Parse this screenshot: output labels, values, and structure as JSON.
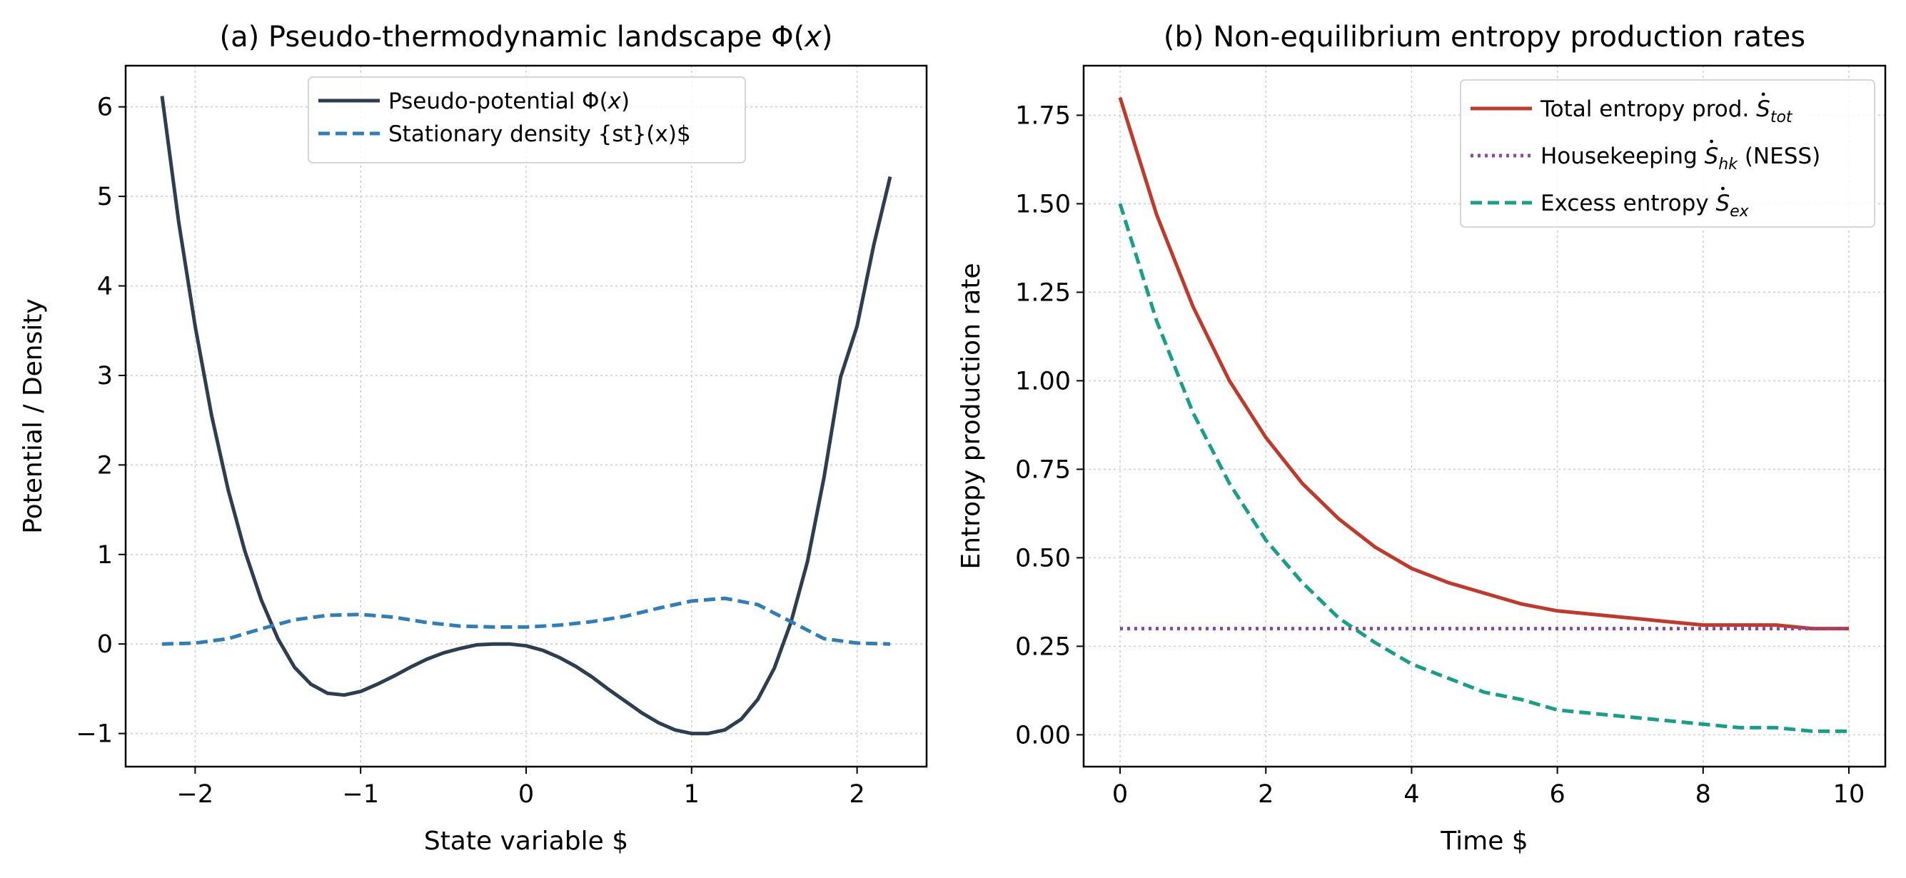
{
  "chart_data": [
    {
      "type": "line",
      "title": "(a) Pseudo-thermodynamic landscape Φ(x)",
      "title_parts": [
        "(a) Pseudo-thermodynamic landscape Φ(",
        "x",
        ")"
      ],
      "xlabel": "State variable $",
      "ylabel": "Potential / Density",
      "xlim": [
        -2.42,
        2.42
      ],
      "ylim": [
        -1.37,
        6.46
      ],
      "xticks": [
        -2,
        -1,
        0,
        1,
        2
      ],
      "yticks": [
        -1,
        0,
        1,
        2,
        3,
        4,
        5,
        6
      ],
      "grid": true,
      "legend_position": "upper center",
      "series": [
        {
          "name": "Pseudo-potential Φ(x)",
          "name_parts": [
            "Pseudo-potential Φ(",
            "x",
            ")"
          ],
          "color": "#2c3e50",
          "style": "solid",
          "x": [
            -2.2,
            -2.1,
            -2.0,
            -1.9,
            -1.8,
            -1.7,
            -1.6,
            -1.5,
            -1.4,
            -1.3,
            -1.2,
            -1.1,
            -1.0,
            -0.9,
            -0.8,
            -0.7,
            -0.6,
            -0.5,
            -0.4,
            -0.3,
            -0.2,
            -0.1,
            0.0,
            0.1,
            0.2,
            0.3,
            0.4,
            0.5,
            0.6,
            0.7,
            0.8,
            0.9,
            1.0,
            1.1,
            1.2,
            1.3,
            1.4,
            1.5,
            1.6,
            1.7,
            1.8,
            1.9,
            2.0,
            2.1,
            2.2
          ],
          "y": [
            6.12,
            4.72,
            3.55,
            2.55,
            1.72,
            1.04,
            0.49,
            0.06,
            -0.26,
            -0.45,
            -0.55,
            -0.57,
            -0.53,
            -0.45,
            -0.36,
            -0.26,
            -0.17,
            -0.1,
            -0.05,
            -0.01,
            0.0,
            0.0,
            -0.02,
            -0.07,
            -0.15,
            -0.25,
            -0.37,
            -0.51,
            -0.64,
            -0.77,
            -0.88,
            -0.96,
            -1.0,
            -1.0,
            -0.96,
            -0.84,
            -0.62,
            -0.27,
            0.24,
            0.92,
            1.86,
            2.98,
            3.55,
            4.45,
            5.22
          ]
        },
        {
          "name": "Stationary density {st}(x)$",
          "color": "#2e7fb8",
          "style": "dashed",
          "x": [
            -2.2,
            -2.0,
            -1.8,
            -1.6,
            -1.4,
            -1.2,
            -1.0,
            -0.8,
            -0.6,
            -0.4,
            -0.2,
            0.0,
            0.2,
            0.4,
            0.6,
            0.8,
            1.0,
            1.2,
            1.4,
            1.6,
            1.8,
            2.0,
            2.2
          ],
          "y": [
            0.0,
            0.01,
            0.06,
            0.17,
            0.27,
            0.32,
            0.33,
            0.3,
            0.24,
            0.2,
            0.19,
            0.19,
            0.21,
            0.25,
            0.31,
            0.4,
            0.48,
            0.51,
            0.44,
            0.25,
            0.06,
            0.01,
            0.0
          ]
        }
      ]
    },
    {
      "type": "line",
      "title": "(b) Non-equilibrium entropy production rates",
      "xlabel": "Time $",
      "ylabel": "Entropy production rate",
      "xlim": [
        -0.5,
        10.5
      ],
      "ylim": [
        -0.09,
        1.89
      ],
      "xticks": [
        0,
        2,
        4,
        6,
        8,
        10
      ],
      "yticks": [
        "0.00",
        "0.25",
        "0.50",
        "0.75",
        "1.00",
        "1.25",
        "1.50",
        "1.75"
      ],
      "grid": true,
      "legend_position": "upper right",
      "series": [
        {
          "name": "Total entropy prod. Ṡtot",
          "name_parts": [
            "Total entropy prod. ",
            "S",
            "tot"
          ],
          "color": "#c0392b",
          "style": "solid",
          "x": [
            0,
            0.5,
            1,
            1.5,
            2,
            2.5,
            3,
            3.5,
            4,
            4.5,
            5,
            5.5,
            6,
            6.5,
            7,
            7.5,
            8,
            8.5,
            9,
            9.5,
            10
          ],
          "y": [
            1.8,
            1.47,
            1.21,
            1.0,
            0.84,
            0.71,
            0.61,
            0.53,
            0.47,
            0.43,
            0.4,
            0.37,
            0.35,
            0.34,
            0.33,
            0.32,
            0.31,
            0.31,
            0.31,
            0.3,
            0.3
          ]
        },
        {
          "name": "Housekeeping Ṡhk (NESS)",
          "name_parts": [
            "Housekeeping ",
            "S",
            "hk",
            " (NESS)"
          ],
          "color": "#8e44ad",
          "style": "dotted",
          "x": [
            0,
            10
          ],
          "y": [
            0.3,
            0.3
          ]
        },
        {
          "name": "Excess entropy Ṡex",
          "name_parts": [
            "Excess entropy ",
            "S",
            "ex"
          ],
          "color": "#16a085",
          "style": "dashed",
          "x": [
            0,
            0.5,
            1,
            1.5,
            2,
            2.5,
            3,
            3.5,
            4,
            4.5,
            5,
            5.5,
            6,
            6.5,
            7,
            7.5,
            8,
            8.5,
            9,
            9.5,
            10
          ],
          "y": [
            1.5,
            1.17,
            0.91,
            0.71,
            0.55,
            0.43,
            0.33,
            0.26,
            0.2,
            0.16,
            0.12,
            0.1,
            0.07,
            0.06,
            0.05,
            0.04,
            0.03,
            0.02,
            0.02,
            0.01,
            0.01
          ]
        }
      ]
    }
  ]
}
